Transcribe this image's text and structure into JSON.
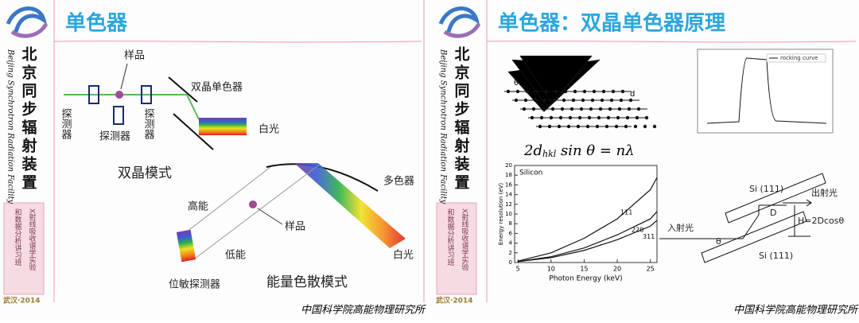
{
  "slides": [
    {
      "title": "单色器",
      "sidebar": {
        "name": "北京同步辐射装置",
        "name_en": "Beijing Synchrotron Radiation Facility",
        "workshop": [
          "X射线吸收谱学实验",
          "和数据分析讲习班"
        ],
        "place": "武汉·2014"
      },
      "footer": "中国科学院高能物理研究所",
      "labels": {
        "sample": "样品",
        "dcm": "双晶单色器",
        "detector_left": "探测器",
        "detector_mid": "探测器",
        "detector_right": "探测器",
        "white_light": "白光",
        "double_crystal_mode": "双晶模式",
        "high_energy": "高能",
        "low_energy": "低能",
        "sample2": "样品",
        "polychromator": "多色器",
        "white_light2": "白光",
        "psd": "位敏探测器",
        "dispersive_mode": "能量色散模式"
      }
    },
    {
      "title": "单色器：双晶单色器原理",
      "sidebar": {
        "name": "北京同步辐射装置",
        "name_en": "Beijing Synchrotron Radiation Facility",
        "workshop": [
          "X射线吸收谱学实验",
          "和数据分析讲习班"
        ],
        "place": "武汉·2014"
      },
      "footer": "中国科学院高能物理研究所",
      "bragg": {
        "theta": "θ",
        "d": "d",
        "formula": {
          "lead": "2d",
          "sub": "hkl",
          "rest": " sin θ = nλ"
        }
      },
      "rocking_curve": {
        "legend": "rocking curve"
      },
      "energy_plot": {
        "title": "Silicon",
        "xlabel": "Photon Energy (keV)",
        "ylabel": "Energy resolution (eV)",
        "x": [
          5,
          10,
          15,
          20,
          25,
          26
        ],
        "xlim": [
          4.5,
          26
        ],
        "ylim": [
          0,
          20
        ],
        "xticks": [
          5,
          10,
          15,
          20,
          25
        ],
        "yticks": [
          0,
          2,
          4,
          6,
          8,
          10,
          12,
          14,
          16,
          18,
          20
        ],
        "series": [
          {
            "name": "111",
            "values": [
              0.3,
              2,
              5,
              9,
              15,
              17.5
            ]
          },
          {
            "name": "220",
            "values": [
              0.2,
              1.2,
              3,
              5.7,
              9,
              10.5
            ]
          },
          {
            "name": "311",
            "values": [
              0.2,
              1,
              2.5,
              4.7,
              7.5,
              8.7
            ]
          }
        ]
      },
      "dcm": {
        "top": "Si (111)",
        "bottom": "Si (111)",
        "out": "出射光",
        "in": "入射光",
        "d": "D",
        "h": "H=2Dcosθ",
        "theta": "θ"
      }
    }
  ]
}
